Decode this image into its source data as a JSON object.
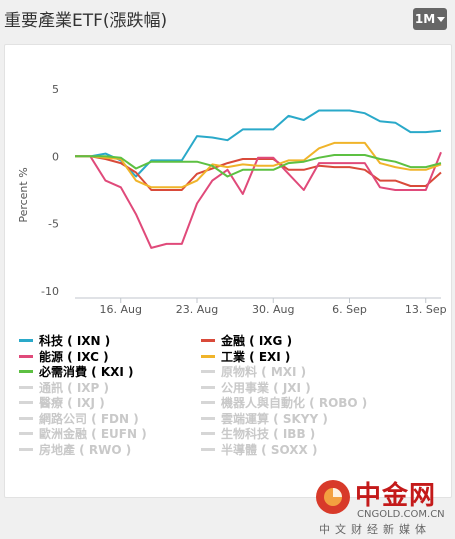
{
  "title": "重要產業ETF(漲跌幅)",
  "range_label": "1M",
  "chart_data": {
    "type": "line",
    "ylabel": "Percent %",
    "ylim": [
      -10,
      7
    ],
    "yticks": [
      5,
      0,
      -5,
      -10
    ],
    "x": [
      "13 Aug",
      "14 Aug",
      "15 Aug",
      "16 Aug",
      "17 Aug",
      "20 Aug",
      "21 Aug",
      "22 Aug",
      "23 Aug",
      "24 Aug",
      "27 Aug",
      "28 Aug",
      "29 Aug",
      "30 Aug",
      "31 Aug",
      "3 Sep",
      "4 Sep",
      "5 Sep",
      "6 Sep",
      "7 Sep",
      "10 Sep",
      "11 Sep",
      "12 Sep",
      "13 Sep",
      "14 Sep"
    ],
    "xticks": [
      {
        "label": "16. Aug",
        "index": 3
      },
      {
        "label": "23. Aug",
        "index": 8
      },
      {
        "label": "30. Aug",
        "index": 13
      },
      {
        "label": "6. Sep",
        "index": 18
      },
      {
        "label": "13. Sep",
        "index": 23
      }
    ],
    "series": [
      {
        "name": "科技 ( IXN )",
        "color": "#2aa9c9",
        "values": [
          0,
          0,
          0.2,
          -0.3,
          -1.5,
          -0.3,
          -0.3,
          -0.3,
          1.5,
          1.4,
          1.2,
          2.0,
          2.0,
          2.0,
          3.0,
          2.7,
          3.4,
          3.4,
          3.4,
          3.2,
          2.6,
          2.5,
          1.8,
          1.8,
          1.9
        ]
      },
      {
        "name": "金融 ( IXG )",
        "color": "#d94a3a",
        "values": [
          0,
          0,
          -0.2,
          -0.5,
          -1.2,
          -2.5,
          -2.5,
          -2.5,
          -1.3,
          -0.9,
          -0.5,
          -0.2,
          -0.2,
          -0.2,
          -1.0,
          -1.0,
          -0.7,
          -0.8,
          -0.8,
          -1.0,
          -1.8,
          -1.8,
          -2.2,
          -2.2,
          -1.2
        ]
      },
      {
        "name": "能源 ( IXC )",
        "color": "#e04a7a",
        "values": [
          0,
          0,
          -1.8,
          -2.3,
          -4.3,
          -6.8,
          -6.5,
          -6.5,
          -3.5,
          -1.8,
          -1.0,
          -2.8,
          -0.1,
          -0.1,
          -1.3,
          -2.5,
          -0.5,
          -0.5,
          -0.5,
          -0.5,
          -2.3,
          -2.5,
          -2.5,
          -2.5,
          0.3
        ]
      },
      {
        "name": "工業 ( EXI )",
        "color": "#f0b42a",
        "values": [
          0,
          0,
          -0.1,
          -0.2,
          -1.8,
          -2.3,
          -2.3,
          -2.3,
          -1.8,
          -0.6,
          -0.8,
          -0.6,
          -0.7,
          -0.7,
          -0.3,
          -0.3,
          0.6,
          1.0,
          1.0,
          1.0,
          -0.5,
          -0.8,
          -1.0,
          -1.0,
          -0.6
        ]
      },
      {
        "name": "必需消費 ( KXI )",
        "color": "#5dc042",
        "values": [
          0,
          0,
          0,
          -0.1,
          -0.9,
          -0.4,
          -0.4,
          -0.4,
          -0.4,
          -0.7,
          -1.5,
          -1.0,
          -1.0,
          -1.0,
          -0.5,
          -0.4,
          -0.1,
          0.1,
          0.1,
          0.1,
          -0.2,
          -0.4,
          -0.8,
          -0.8,
          -0.5
        ]
      }
    ],
    "legend_off": [
      "原物料 ( MXI )",
      "通訊 ( IXP )",
      "公用事業 ( JXI )",
      "醫療 ( IXJ )",
      "機器人與自動化 ( ROBO )",
      "網路公司 ( FDN )",
      "雲端運算 ( SKYY )",
      "歐洲金融 ( EUFN )",
      "生物科技 ( IBB )",
      "房地產 ( RWO )",
      "半導體 ( SOXX )"
    ],
    "legend_placement": "bottom",
    "grid": false
  },
  "watermark": {
    "brand": "中金网",
    "domain": "CNGOLD.COM.CN",
    "sub": "中文财经新媒体"
  }
}
